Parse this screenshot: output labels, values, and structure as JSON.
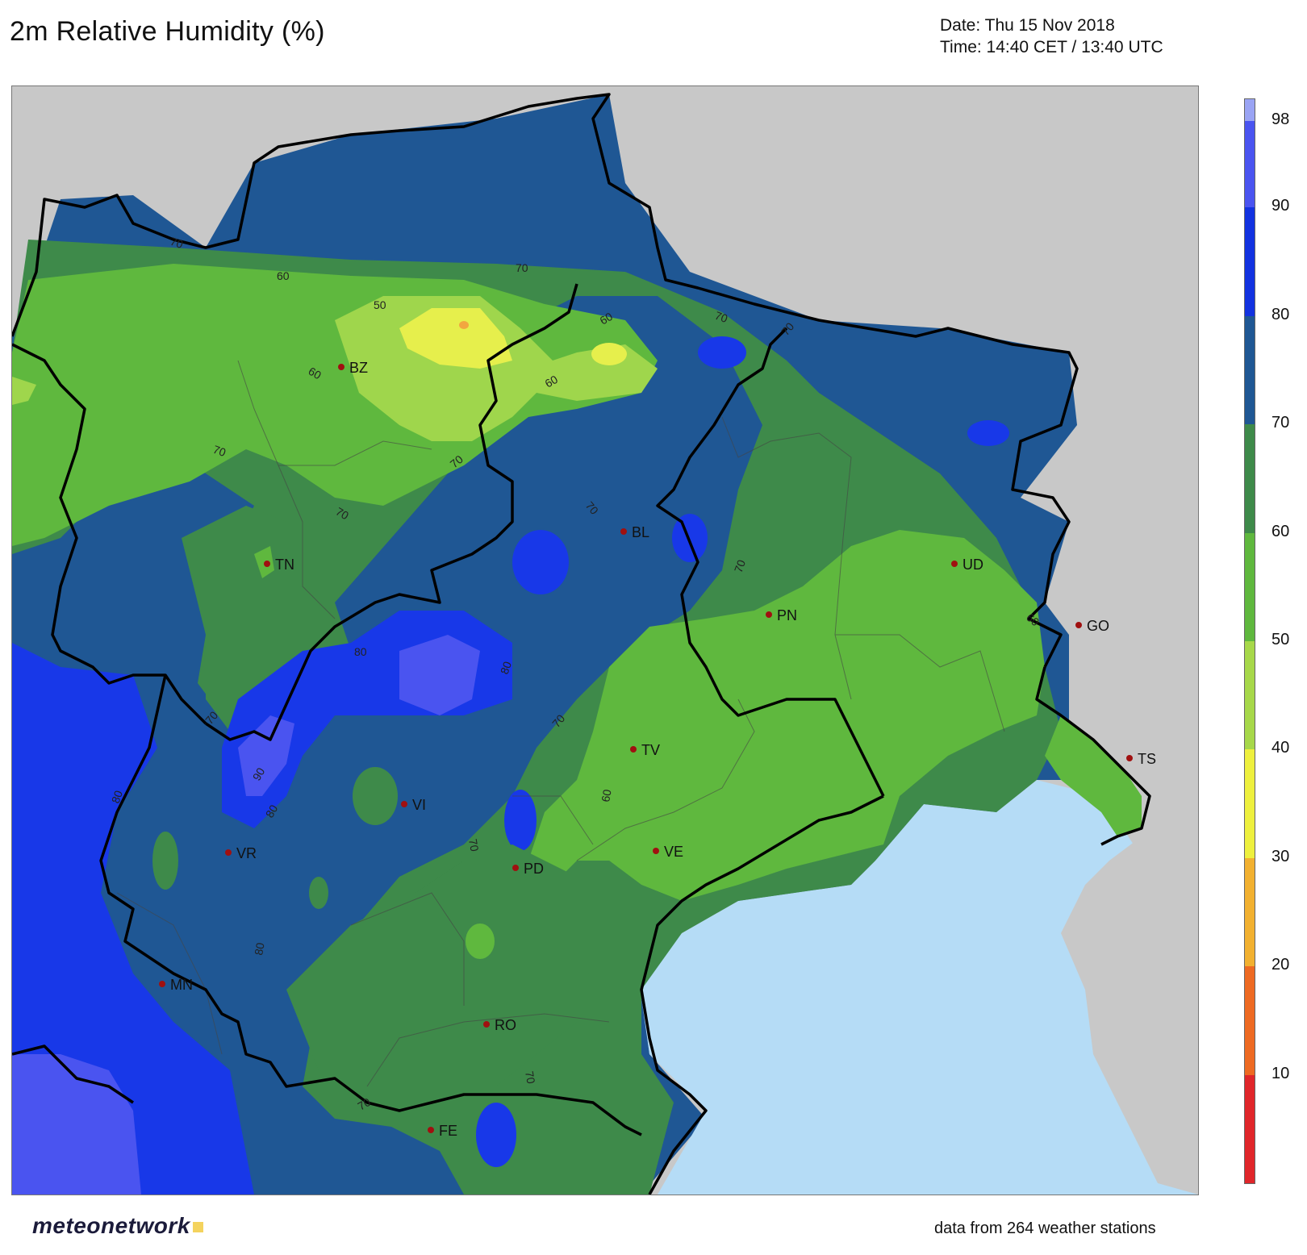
{
  "title": "2m Relative Humidity (%)",
  "date_line": "Date: Thu 15 Nov 2018",
  "time_line": "Time: 14:40 CET / 13:40 UTC",
  "footer": "data from 264 weather stations",
  "logo_text": "meteonetwork",
  "colors": {
    "land_out": "#c8c8c8",
    "sea": "#b5dcf6",
    "rh_30_40": "#e6ef4c",
    "rh_40_50": "#9fd64c",
    "rh_50_60": "#5fb83e",
    "rh_60_70": "#3e8a4a",
    "rh_70_80": "#1f5794",
    "rh_80_90": "#1838e8",
    "rh_90_98": "#4a54f0",
    "rh_98_100": "#9aa4f4",
    "station": "#a01010"
  },
  "colorbar": {
    "ticks": [
      "10",
      "20",
      "30",
      "40",
      "50",
      "60",
      "70",
      "80",
      "90",
      "98"
    ],
    "segments": [
      {
        "from": 0,
        "to": 10,
        "color": "#e0262a"
      },
      {
        "from": 10,
        "to": 20,
        "color": "#ee6a22"
      },
      {
        "from": 20,
        "to": 30,
        "color": "#f2b130"
      },
      {
        "from": 30,
        "to": 40,
        "color": "#eef03e"
      },
      {
        "from": 40,
        "to": 50,
        "color": "#a7d84a"
      },
      {
        "from": 50,
        "to": 60,
        "color": "#5fb83e"
      },
      {
        "from": 60,
        "to": 70,
        "color": "#3e8a4a"
      },
      {
        "from": 70,
        "to": 80,
        "color": "#1f5794"
      },
      {
        "from": 80,
        "to": 90,
        "color": "#1232e0"
      },
      {
        "from": 90,
        "to": 98,
        "color": "#4a54f0"
      },
      {
        "from": 98,
        "to": 100,
        "color": "#9aa4f4"
      }
    ]
  },
  "stations": [
    {
      "code": "BZ"
    },
    {
      "code": "TN"
    },
    {
      "code": "BL"
    },
    {
      "code": "UD"
    },
    {
      "code": "PN"
    },
    {
      "code": "GO"
    },
    {
      "code": "TS"
    },
    {
      "code": "TV"
    },
    {
      "code": "VE"
    },
    {
      "code": "VI"
    },
    {
      "code": "VR"
    },
    {
      "code": "PD"
    },
    {
      "code": "MN"
    },
    {
      "code": "RO"
    },
    {
      "code": "FE"
    }
  ],
  "contour_labels": [
    "70",
    "60",
    "70",
    "50",
    "60",
    "60",
    "70",
    "60",
    "70",
    "70",
    "70",
    "70",
    "70",
    "80",
    "80",
    "70",
    "60",
    "70",
    "90",
    "80",
    "80",
    "80",
    "70",
    "70",
    "70",
    "70",
    "60"
  ]
}
